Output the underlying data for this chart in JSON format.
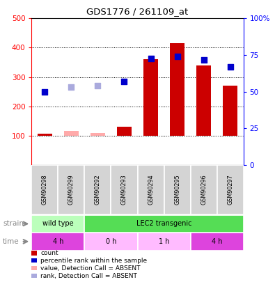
{
  "title": "GDS1776 / 261109_at",
  "samples": [
    "GSM90298",
    "GSM90299",
    "GSM90292",
    "GSM90293",
    "GSM90294",
    "GSM90295",
    "GSM90296",
    "GSM90297"
  ],
  "count_values": [
    107,
    null,
    null,
    130,
    360,
    415,
    340,
    270
  ],
  "count_absent": [
    null,
    115,
    108,
    null,
    null,
    null,
    null,
    null
  ],
  "rank_values": [
    250,
    null,
    null,
    285,
    362,
    370,
    358,
    335
  ],
  "rank_absent": [
    null,
    265,
    270,
    null,
    null,
    null,
    null,
    null
  ],
  "ylim_left": [
    0,
    500
  ],
  "yticks_left": [
    100,
    200,
    300,
    400,
    500
  ],
  "yticks_right": [
    0,
    25,
    50,
    75,
    100
  ],
  "strain_groups": [
    {
      "label": "wild type",
      "start": 0,
      "end": 2,
      "color": "#bbffbb"
    },
    {
      "label": "LEC2 transgenic",
      "start": 2,
      "end": 8,
      "color": "#55dd55"
    }
  ],
  "time_groups": [
    {
      "label": "4 h",
      "start": 0,
      "end": 2,
      "color": "#dd44dd"
    },
    {
      "label": "0 h",
      "start": 2,
      "end": 4,
      "color": "#ffbbff"
    },
    {
      "label": "1 h",
      "start": 4,
      "end": 6,
      "color": "#ffbbff"
    },
    {
      "label": "4 h",
      "start": 6,
      "end": 8,
      "color": "#dd44dd"
    }
  ],
  "bar_color": "#cc0000",
  "bar_absent_color": "#ffaaaa",
  "rank_color": "#0000cc",
  "rank_absent_color": "#aaaadd",
  "legend_items": [
    {
      "label": "count",
      "color": "#cc0000"
    },
    {
      "label": "percentile rank within the sample",
      "color": "#0000cc"
    },
    {
      "label": "value, Detection Call = ABSENT",
      "color": "#ffaaaa"
    },
    {
      "label": "rank, Detection Call = ABSENT",
      "color": "#aaaadd"
    }
  ]
}
